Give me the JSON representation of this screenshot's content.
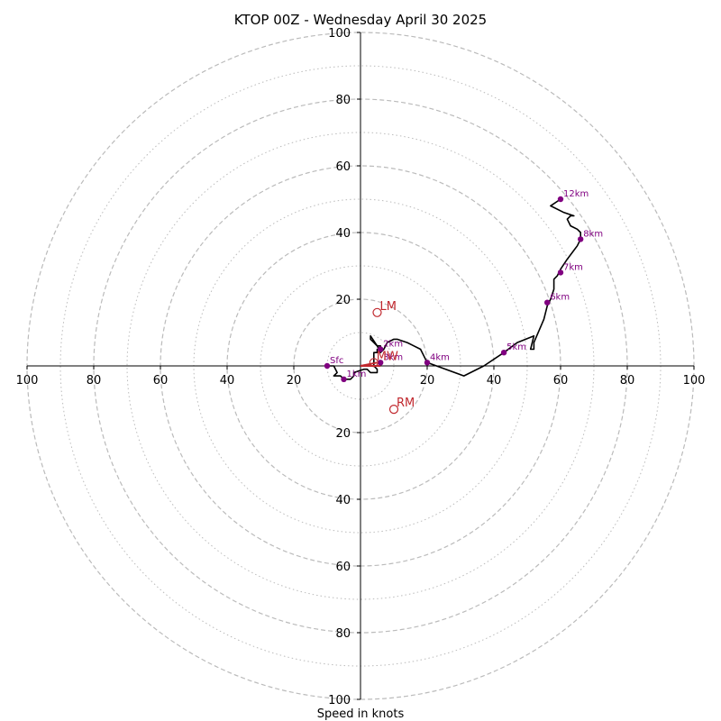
{
  "chart_data": {
    "type": "hodograph",
    "title": "KTOP 00Z - Wednesday April 30 2025",
    "xlabel": "Speed in knots",
    "range": [
      -100,
      100
    ],
    "ring_major": [
      20,
      40,
      60,
      80,
      100
    ],
    "ring_minor": [
      10,
      30,
      50,
      70,
      90
    ],
    "tick_values": [
      20,
      40,
      60,
      80,
      100
    ],
    "tick_labels": [
      "20",
      "40",
      "60",
      "80",
      "100"
    ],
    "colors": {
      "trace": "#000000",
      "height_marker": "#800080",
      "motion": "#c0272d",
      "ring": "#bbbbbb",
      "axis": "#000000"
    },
    "trace": [
      [
        -10,
        0
      ],
      [
        -9,
        0
      ],
      [
        -8,
        0
      ],
      [
        -7,
        -2
      ],
      [
        -8,
        -3
      ],
      [
        -7,
        -3
      ],
      [
        -6,
        -3
      ],
      [
        -5,
        -4
      ],
      [
        -3,
        -4
      ],
      [
        -2,
        -3
      ],
      [
        -2,
        -2
      ],
      [
        1,
        -1
      ],
      [
        2,
        -1
      ],
      [
        3,
        -2
      ],
      [
        5,
        -2
      ],
      [
        5,
        -1
      ],
      [
        4,
        0
      ],
      [
        4,
        2
      ],
      [
        4,
        4
      ],
      [
        5,
        4
      ],
      [
        5,
        5
      ],
      [
        6,
        5
      ],
      [
        6,
        6
      ],
      [
        5,
        6
      ],
      [
        4,
        7
      ],
      [
        3,
        8
      ],
      [
        3,
        9
      ],
      [
        5,
        6
      ],
      [
        6,
        4
      ],
      [
        7,
        5
      ],
      [
        8,
        7
      ],
      [
        10,
        8
      ],
      [
        11,
        8
      ],
      [
        14,
        7
      ],
      [
        16,
        6
      ],
      [
        18,
        5
      ],
      [
        20,
        1
      ],
      [
        31,
        -3
      ],
      [
        37,
        0
      ],
      [
        43,
        4
      ],
      [
        47,
        7
      ],
      [
        52,
        9
      ],
      [
        51,
        5
      ],
      [
        52,
        5
      ],
      [
        52,
        7
      ],
      [
        55,
        14
      ],
      [
        56,
        18
      ],
      [
        57,
        20
      ],
      [
        58,
        23
      ],
      [
        58,
        26
      ],
      [
        59,
        27
      ],
      [
        60,
        29
      ],
      [
        62,
        32
      ],
      [
        65,
        36
      ],
      [
        66,
        38
      ],
      [
        66,
        40
      ],
      [
        65,
        41
      ],
      [
        63,
        42
      ],
      [
        62,
        44
      ],
      [
        63,
        45
      ],
      [
        64,
        45
      ],
      [
        61,
        46
      ],
      [
        57,
        48
      ],
      [
        60,
        50
      ]
    ],
    "height_points": [
      {
        "label": "Sfc",
        "x": -10,
        "y": 0
      },
      {
        "label": "1km",
        "x": -5,
        "y": -4
      },
      {
        "label": "2km",
        "x": 6,
        "y": 5
      },
      {
        "label": "3km",
        "x": 6,
        "y": 1
      },
      {
        "label": "4km",
        "x": 20,
        "y": 1
      },
      {
        "label": "5km",
        "x": 43,
        "y": 4
      },
      {
        "label": "6km",
        "x": 56,
        "y": 19
      },
      {
        "label": "7km",
        "x": 60,
        "y": 28
      },
      {
        "label": "8km",
        "x": 66,
        "y": 38
      },
      {
        "label": "12km",
        "x": 60,
        "y": 50
      }
    ],
    "storm_motion": [
      {
        "label": "LM",
        "x": 5,
        "y": 16
      },
      {
        "label": "MW",
        "x": 4,
        "y": 1
      },
      {
        "label": "RM",
        "x": 10,
        "y": -13
      }
    ],
    "shear_vectors": [
      [
        [
          0,
          0
        ],
        [
          5,
          1
        ]
      ],
      [
        [
          0,
          0
        ],
        [
          6,
          0
        ]
      ]
    ]
  }
}
